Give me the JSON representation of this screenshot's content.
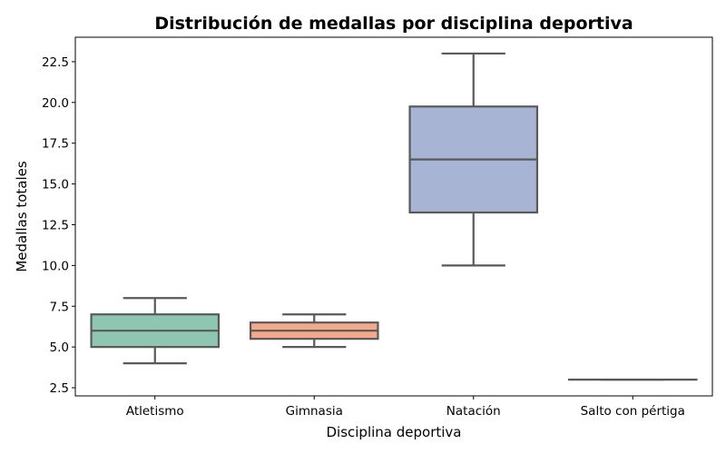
{
  "chart_data": {
    "type": "box",
    "title": "Distribución de medallas por disciplina deportiva",
    "xlabel": "Disciplina deportiva",
    "ylabel": "Medallas totales",
    "ylim": [
      2.0,
      24.0
    ],
    "yticks": [
      2.5,
      5.0,
      7.5,
      10.0,
      12.5,
      15.0,
      17.5,
      20.0,
      22.5
    ],
    "ytick_labels": [
      "2.5",
      "5.0",
      "7.5",
      "10.0",
      "12.5",
      "15.0",
      "17.5",
      "20.0",
      "22.5"
    ],
    "grid": false,
    "categories": [
      "Atletismo",
      "Gimnasia",
      "Natación",
      "Salto con pértiga"
    ],
    "boxes": [
      {
        "category": "Atletismo",
        "whisker_low": 4.0,
        "q1": 5.0,
        "median": 6.0,
        "q3": 7.0,
        "whisker_high": 8.0,
        "color": "#8fc6b2"
      },
      {
        "category": "Gimnasia",
        "whisker_low": 5.0,
        "q1": 5.5,
        "median": 6.0,
        "q3": 6.5,
        "whisker_high": 7.0,
        "color": "#f4a98a"
      },
      {
        "category": "Natación",
        "whisker_low": 10.0,
        "q1": 13.25,
        "median": 16.5,
        "q3": 19.75,
        "whisker_high": 23.0,
        "color": "#a8b4d3"
      },
      {
        "category": "Salto con pértiga",
        "whisker_low": 3.0,
        "q1": 3.0,
        "median": 3.0,
        "q3": 3.0,
        "whisker_high": 3.0,
        "color": "#e49ec6"
      }
    ],
    "line_color": "#595959"
  }
}
